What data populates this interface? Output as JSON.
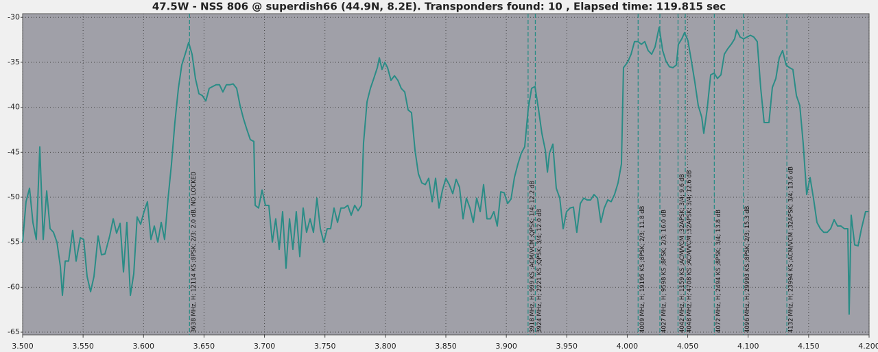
{
  "chart_data": {
    "type": "line",
    "title": "47.5W - NSS 806 @ superdish66 (44.9N, 8.2E). Transponders found: 10 , Elapsed time: 119.815 sec",
    "color": "#2a8c86",
    "background": "#a0a0a8",
    "grid": true,
    "marker_color": "#2a8c86",
    "xlim": [
      3.5,
      4.2
    ],
    "ylim": [
      -65.3,
      -29.6
    ],
    "xticks": [
      {
        "value": 3.5,
        "label": "3.500"
      },
      {
        "value": 3.55,
        "label": "3.550"
      },
      {
        "value": 3.6,
        "label": "3.600"
      },
      {
        "value": 3.65,
        "label": "3.650"
      },
      {
        "value": 3.7,
        "label": "3.700"
      },
      {
        "value": 3.75,
        "label": "3.750"
      },
      {
        "value": 3.8,
        "label": "3.800"
      },
      {
        "value": 3.85,
        "label": "3.850"
      },
      {
        "value": 3.9,
        "label": "3.900"
      },
      {
        "value": 3.95,
        "label": "3.950"
      },
      {
        "value": 4.0,
        "label": "4.000"
      },
      {
        "value": 4.05,
        "label": "4.050"
      },
      {
        "value": 4.1,
        "label": "4.100"
      },
      {
        "value": 4.15,
        "label": "4.150"
      },
      {
        "value": 4.2,
        "label": "4.200"
      }
    ],
    "yticks": [
      -30,
      -35,
      -40,
      -45,
      -50,
      -55,
      -60,
      -65
    ],
    "x": [
      3.5,
      3.5028,
      3.5057,
      3.5085,
      3.5113,
      3.5142,
      3.517,
      3.5199,
      3.5227,
      3.5255,
      3.5284,
      3.5312,
      3.5329,
      3.5352,
      3.538,
      3.5414,
      3.5442,
      3.5477,
      3.5505,
      3.5533,
      3.5562,
      3.559,
      3.5624,
      3.5652,
      3.5681,
      3.572,
      3.5749,
      3.5777,
      3.5806,
      3.5834,
      3.5862,
      3.5891,
      3.5919,
      3.5947,
      3.5976,
      3.6004,
      3.6032,
      3.6061,
      3.6089,
      3.6118,
      3.6146,
      3.6174,
      3.6203,
      3.6231,
      3.6259,
      3.6288,
      3.6316,
      3.6344,
      3.6373,
      3.6401,
      3.6429,
      3.6458,
      3.6486,
      3.6515,
      3.6543,
      3.6571,
      3.66,
      3.6628,
      3.6656,
      3.6685,
      3.6713,
      3.6741,
      3.677,
      3.6798,
      3.6827,
      3.6855,
      3.6883,
      3.6912,
      3.6923,
      3.6951,
      3.698,
      3.7008,
      3.7036,
      3.7065,
      3.7093,
      3.7122,
      3.715,
      3.7178,
      3.7207,
      3.7235,
      3.7263,
      3.7292,
      3.732,
      3.7348,
      3.7377,
      3.7405,
      3.7434,
      3.7462,
      3.749,
      3.7519,
      3.7547,
      3.7575,
      3.7604,
      3.7632,
      3.766,
      3.7689,
      3.7717,
      3.7746,
      3.7774,
      3.7802,
      3.7819,
      3.7848,
      3.7876,
      3.7904,
      3.7933,
      3.795,
      3.7972,
      3.7995,
      3.8018,
      3.8046,
      3.8075,
      3.8103,
      3.8131,
      3.816,
      3.8188,
      3.8216,
      3.8245,
      3.8273,
      3.8301,
      3.833,
      3.8358,
      3.8387,
      3.8415,
      3.8443,
      3.8472,
      3.85,
      3.8528,
      3.8557,
      3.8585,
      3.8613,
      3.8642,
      3.867,
      3.8699,
      3.8727,
      3.8755,
      3.8784,
      3.8812,
      3.884,
      3.8869,
      3.8897,
      3.8925,
      3.8954,
      3.8982,
      3.9011,
      3.9039,
      3.9067,
      3.9096,
      3.9124,
      3.9152,
      3.9181,
      3.9209,
      3.9237,
      3.9266,
      3.9294,
      3.9323,
      3.934,
      3.9357,
      3.9385,
      3.9413,
      3.9442,
      3.947,
      3.9498,
      3.9527,
      3.9555,
      3.9583,
      3.9612,
      3.964,
      3.9668,
      3.9697,
      3.9725,
      3.9754,
      3.9782,
      3.981,
      3.9839,
      3.9867,
      3.9895,
      3.9924,
      3.9952,
      3.9969,
      4.0003,
      4.0032,
      4.006,
      4.0088,
      4.0117,
      4.0145,
      4.0173,
      4.0202,
      4.023,
      4.0264,
      4.0293,
      4.0321,
      4.0349,
      4.0378,
      4.0406,
      4.0423,
      4.0451,
      4.0474,
      4.0502,
      4.0531,
      4.0559,
      4.0587,
      4.0616,
      4.0633,
      4.0661,
      4.069,
      4.0718,
      4.0746,
      4.0775,
      4.0803,
      4.0831,
      4.086,
      4.0888,
      4.0905,
      4.0934,
      4.0962,
      4.099,
      4.1019,
      4.1047,
      4.1075,
      4.1104,
      4.1132,
      4.1149,
      4.1172,
      4.12,
      4.1229,
      4.1257,
      4.1285,
      4.1314,
      4.1342,
      4.137,
      4.1399,
      4.1427,
      4.1455,
      4.1484,
      4.1512,
      4.154,
      4.1569,
      4.1597,
      4.1625,
      4.1654,
      4.1682,
      4.1711,
      4.1739,
      4.1767,
      4.1796,
      4.1824,
      4.1835,
      4.1852,
      4.1881,
      4.1909,
      4.1937,
      4.1971,
      4.1994
    ],
    "values": [
      -55.0,
      -50.5,
      -49.0,
      -52.8,
      -54.7,
      -44.4,
      -54.7,
      -49.3,
      -53.5,
      -53.9,
      -55.0,
      -57.7,
      -60.9,
      -57.1,
      -57.1,
      -53.7,
      -57.1,
      -54.5,
      -54.7,
      -58.8,
      -60.5,
      -58.8,
      -54.3,
      -56.4,
      -56.3,
      -54.3,
      -52.4,
      -54.0,
      -52.9,
      -58.3,
      -52.8,
      -60.9,
      -58.5,
      -52.2,
      -53.0,
      -51.6,
      -50.5,
      -54.7,
      -53.2,
      -55.0,
      -52.8,
      -54.7,
      -50.1,
      -46.3,
      -41.7,
      -37.9,
      -35.3,
      -34.1,
      -32.8,
      -34.1,
      -36.8,
      -38.5,
      -38.7,
      -39.3,
      -37.9,
      -37.7,
      -37.5,
      -37.5,
      -38.3,
      -37.5,
      -37.5,
      -37.4,
      -37.9,
      -39.8,
      -41.3,
      -42.5,
      -43.6,
      -43.8,
      -50.9,
      -51.2,
      -49.2,
      -50.9,
      -50.9,
      -55.0,
      -52.4,
      -55.8,
      -51.6,
      -57.9,
      -52.4,
      -55.8,
      -51.6,
      -56.6,
      -51.2,
      -53.9,
      -52.4,
      -53.9,
      -50.1,
      -53.5,
      -55.0,
      -53.5,
      -53.5,
      -51.2,
      -52.8,
      -51.2,
      -51.2,
      -50.9,
      -52.0,
      -50.9,
      -51.5,
      -50.9,
      -44.0,
      -39.4,
      -37.9,
      -36.8,
      -35.6,
      -34.5,
      -35.8,
      -35.0,
      -35.6,
      -37.0,
      -36.5,
      -37.0,
      -37.9,
      -38.3,
      -40.3,
      -40.6,
      -44.8,
      -47.4,
      -48.4,
      -48.6,
      -47.9,
      -50.5,
      -47.9,
      -51.2,
      -49.2,
      -47.9,
      -48.6,
      -49.6,
      -48.0,
      -48.9,
      -52.4,
      -50.1,
      -51.2,
      -52.8,
      -50.1,
      -51.6,
      -48.6,
      -52.4,
      -52.4,
      -51.6,
      -53.2,
      -49.4,
      -49.5,
      -50.7,
      -50.2,
      -47.8,
      -46.3,
      -45.1,
      -44.4,
      -40.2,
      -37.9,
      -37.7,
      -40.2,
      -42.9,
      -44.8,
      -47.2,
      -45.1,
      -44.1,
      -49.0,
      -50.1,
      -53.5,
      -51.6,
      -51.2,
      -51.1,
      -53.9,
      -50.7,
      -50.1,
      -50.3,
      -50.3,
      -49.7,
      -50.1,
      -52.8,
      -51.2,
      -50.3,
      -50.5,
      -49.7,
      -48.4,
      -46.3,
      -35.6,
      -35.0,
      -34.1,
      -32.7,
      -32.7,
      -33.0,
      -32.7,
      -33.7,
      -34.1,
      -33.3,
      -31.1,
      -33.7,
      -34.9,
      -35.5,
      -35.6,
      -35.3,
      -33.0,
      -32.4,
      -31.7,
      -32.6,
      -34.9,
      -37.2,
      -39.8,
      -41.1,
      -42.9,
      -40.2,
      -36.4,
      -36.2,
      -36.8,
      -36.4,
      -34.1,
      -33.5,
      -33.0,
      -32.4,
      -31.4,
      -32.2,
      -32.4,
      -32.2,
      -32.0,
      -32.2,
      -32.7,
      -37.9,
      -41.7,
      -41.7,
      -41.7,
      -37.8,
      -36.8,
      -34.5,
      -33.7,
      -35.3,
      -35.6,
      -35.8,
      -38.7,
      -39.8,
      -44.0,
      -49.7,
      -47.8,
      -50.1,
      -52.8,
      -53.5,
      -53.9,
      -53.9,
      -53.5,
      -52.5,
      -53.2,
      -53.2,
      -53.5,
      -53.5,
      -63.0,
      -52.0,
      -55.3,
      -55.4,
      -53.5,
      -51.6,
      -51.6
    ],
    "markers": [
      {
        "x": 3.638,
        "label": "3638 MHz, H; 12114 KS ;8PSK; 2/3; 2.0 dB, NO LOCKED"
      },
      {
        "x": 3.918,
        "label": "3918 MHz, H; 999 KS ;ACM/VCM ;QPSK; 1/4; 12.2 dB"
      },
      {
        "x": 3.924,
        "label": "3924 MHz, H; 2221 KS ;QPSK; 3/4; 12.0 dB"
      },
      {
        "x": 4.009,
        "label": "4009 MHz, H; 19195 KS ;8PSK; 2/3; 11.8 dB"
      },
      {
        "x": 4.027,
        "label": "4027 MHz, H; 9598 KS ;8PSK; 2/3; 16.0 dB"
      },
      {
        "x": 4.042,
        "label": "4042 MHz, H; 1159 KS ;ACM/VCM ;32APSK; 3/4; 9.6 dB"
      },
      {
        "x": 4.048,
        "label": "4048 MHz, H; 4708 KS ;ACM/VCM ;32APSK; 3/4; 12.6 dB"
      },
      {
        "x": 4.072,
        "label": "4072 MHz, H; 2494 KS ;8PSK; 3/4; 13.8 dB"
      },
      {
        "x": 4.096,
        "label": "4096 MHz, H; 29993 KS ;8PSK; 2/3; 15.3 dB"
      },
      {
        "x": 4.132,
        "label": "4132 MHz, H; 23994 KS ;ACM/VCM ;32APSK; 3/4; 13.6 dB"
      }
    ]
  }
}
